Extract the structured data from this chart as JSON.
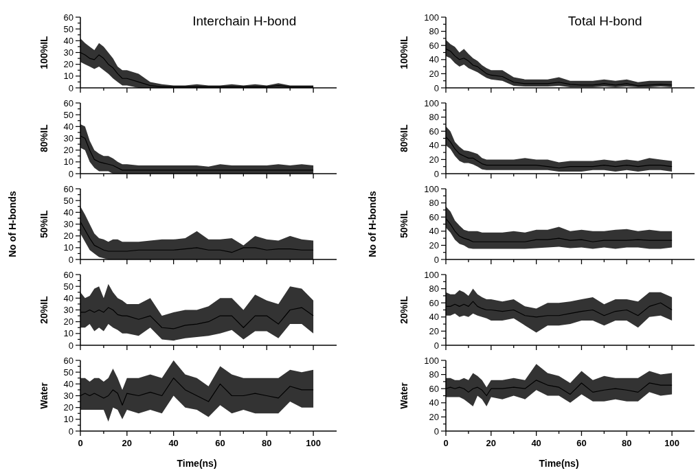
{
  "chart_data": [
    {
      "type": "line",
      "title": "Interchain H-bond",
      "ylabel": "100%IL",
      "tick_labels": "y",
      "x": [
        0,
        2,
        4,
        6,
        8,
        10,
        12,
        14,
        16,
        18,
        20,
        25,
        30,
        35,
        40,
        45,
        50,
        55,
        60,
        65,
        70,
        75,
        80,
        85,
        90,
        95,
        100
      ],
      "xlim": [
        0,
        110
      ],
      "xticks": [
        0,
        {
          "value": 10,
          "label": null
        },
        20,
        {
          "value": 30,
          "label": null
        },
        40,
        {
          "value": 50,
          "label": null
        },
        60,
        {
          "value": 70,
          "label": null
        },
        80,
        {
          "value": 90,
          "label": null
        },
        100
      ],
      "ylim": [
        0,
        60
      ],
      "yticks": [
        0,
        {
          "value": 5,
          "label": null
        },
        10,
        {
          "value": 15,
          "label": null
        },
        20,
        {
          "value": 25,
          "label": null
        },
        30,
        {
          "value": 35,
          "label": null
        },
        40,
        {
          "value": 45,
          "label": null
        },
        50,
        {
          "value": 55,
          "label": null
        },
        60
      ],
      "series": [
        {
          "color": "#000000",
          "values": [
            30,
            28,
            25,
            24,
            28,
            25,
            20,
            17,
            12,
            8,
            8,
            5,
            2,
            1,
            1,
            1,
            1,
            1,
            1,
            1,
            1,
            1,
            1,
            2,
            1,
            1,
            1
          ],
          "lower": [
            22,
            20,
            18,
            16,
            18,
            15,
            12,
            8,
            5,
            2,
            2,
            0,
            0,
            0,
            0,
            0,
            0,
            0,
            0,
            0,
            0,
            0,
            0,
            0,
            0,
            0,
            0
          ],
          "upper": [
            42,
            38,
            35,
            32,
            38,
            35,
            30,
            25,
            18,
            15,
            15,
            12,
            5,
            3,
            2,
            2,
            3,
            2,
            2,
            3,
            2,
            3,
            2,
            4,
            2,
            2,
            2
          ]
        }
      ]
    },
    {
      "type": "line",
      "ylabel": "80%IL",
      "tick_labels": "y",
      "x": [
        0,
        2,
        4,
        6,
        8,
        10,
        12,
        14,
        16,
        18,
        20,
        25,
        30,
        35,
        40,
        45,
        50,
        55,
        60,
        65,
        70,
        75,
        80,
        85,
        90,
        95,
        100
      ],
      "xlim": [
        0,
        110
      ],
      "xticks": [
        0,
        {
          "value": 10,
          "label": null
        },
        20,
        {
          "value": 30,
          "label": null
        },
        40,
        {
          "value": 50,
          "label": null
        },
        60,
        {
          "value": 70,
          "label": null
        },
        80,
        {
          "value": 90,
          "label": null
        },
        100
      ],
      "ylim": [
        0,
        60
      ],
      "yticks": [
        0,
        {
          "value": 5,
          "label": null
        },
        10,
        {
          "value": 15,
          "label": null
        },
        20,
        {
          "value": 25,
          "label": null
        },
        30,
        {
          "value": 35,
          "label": null
        },
        40,
        {
          "value": 45,
          "label": null
        },
        50,
        {
          "value": 55,
          "label": null
        },
        60
      ],
      "series": [
        {
          "color": "#000000",
          "values": [
            32,
            30,
            20,
            12,
            10,
            9,
            8,
            7,
            5,
            3,
            3,
            3,
            3,
            3,
            3,
            3,
            3,
            3,
            3,
            3,
            3,
            3,
            3,
            3,
            3,
            3,
            3
          ],
          "lower": [
            22,
            20,
            10,
            5,
            2,
            2,
            2,
            0,
            0,
            0,
            0,
            0,
            0,
            0,
            0,
            0,
            0,
            0,
            0,
            0,
            0,
            0,
            0,
            0,
            0,
            0,
            0
          ],
          "upper": [
            42,
            40,
            28,
            20,
            17,
            15,
            15,
            13,
            10,
            8,
            8,
            7,
            7,
            7,
            7,
            7,
            7,
            6,
            8,
            7,
            7,
            7,
            7,
            8,
            7,
            8,
            7
          ]
        }
      ]
    },
    {
      "type": "line",
      "ylabel": "50%IL",
      "annotations": [
        "No of H-bonds"
      ],
      "tick_labels": "y",
      "x": [
        0,
        2,
        4,
        6,
        8,
        10,
        12,
        14,
        16,
        18,
        20,
        25,
        30,
        35,
        40,
        45,
        50,
        55,
        60,
        65,
        70,
        75,
        80,
        85,
        90,
        95,
        100
      ],
      "xlim": [
        0,
        110
      ],
      "xticks": [
        0,
        {
          "value": 10,
          "label": null
        },
        20,
        {
          "value": 30,
          "label": null
        },
        40,
        {
          "value": 50,
          "label": null
        },
        60,
        {
          "value": 70,
          "label": null
        },
        80,
        {
          "value": 90,
          "label": null
        },
        100
      ],
      "ylim": [
        0,
        60
      ],
      "yticks": [
        0,
        {
          "value": 5,
          "label": null
        },
        10,
        {
          "value": 15,
          "label": null
        },
        20,
        {
          "value": 25,
          "label": null
        },
        30,
        {
          "value": 35,
          "label": null
        },
        40,
        {
          "value": 45,
          "label": null
        },
        50,
        {
          "value": 55,
          "label": null
        },
        60
      ],
      "series": [
        {
          "color": "#000000",
          "values": [
            32,
            25,
            18,
            12,
            10,
            8,
            7,
            7,
            7,
            7,
            7,
            8,
            8,
            8,
            8,
            9,
            10,
            8,
            8,
            6,
            10,
            10,
            8,
            9,
            9,
            8,
            8
          ],
          "lower": [
            22,
            15,
            8,
            5,
            2,
            1,
            0,
            0,
            0,
            0,
            0,
            0,
            0,
            0,
            0,
            0,
            0,
            0,
            0,
            0,
            0,
            0,
            0,
            0,
            0,
            0,
            0
          ],
          "upper": [
            45,
            38,
            30,
            22,
            18,
            17,
            15,
            17,
            17,
            15,
            15,
            15,
            16,
            17,
            17,
            18,
            24,
            17,
            17,
            18,
            12,
            20,
            17,
            16,
            20,
            17,
            16
          ]
        }
      ]
    },
    {
      "type": "line",
      "ylabel": "20%IL",
      "tick_labels": "y",
      "x": [
        0,
        2,
        4,
        6,
        8,
        10,
        12,
        14,
        16,
        18,
        20,
        25,
        30,
        35,
        40,
        45,
        50,
        55,
        60,
        65,
        70,
        75,
        80,
        85,
        90,
        95,
        100
      ],
      "xlim": [
        0,
        110
      ],
      "xticks": [
        0,
        {
          "value": 10,
          "label": null
        },
        20,
        {
          "value": 30,
          "label": null
        },
        40,
        {
          "value": 50,
          "label": null
        },
        60,
        {
          "value": 70,
          "label": null
        },
        80,
        {
          "value": 90,
          "label": null
        },
        100
      ],
      "ylim": [
        0,
        60
      ],
      "yticks": [
        0,
        {
          "value": 5,
          "label": null
        },
        10,
        {
          "value": 15,
          "label": null
        },
        20,
        {
          "value": 25,
          "label": null
        },
        30,
        {
          "value": 35,
          "label": null
        },
        40,
        {
          "value": 45,
          "label": null
        },
        50,
        {
          "value": 55,
          "label": null
        },
        60
      ],
      "series": [
        {
          "color": "#000000",
          "values": [
            28,
            28,
            30,
            28,
            30,
            28,
            32,
            30,
            26,
            25,
            25,
            22,
            25,
            15,
            14,
            17,
            18,
            20,
            25,
            25,
            15,
            25,
            25,
            18,
            30,
            32,
            25
          ],
          "lower": [
            15,
            15,
            18,
            12,
            15,
            12,
            18,
            15,
            13,
            10,
            10,
            8,
            15,
            5,
            4,
            6,
            7,
            8,
            10,
            13,
            5,
            12,
            12,
            6,
            18,
            18,
            10
          ],
          "upper": [
            45,
            40,
            42,
            48,
            50,
            40,
            52,
            45,
            40,
            38,
            35,
            35,
            40,
            25,
            28,
            30,
            30,
            33,
            40,
            40,
            30,
            43,
            38,
            35,
            50,
            48,
            38
          ]
        }
      ]
    },
    {
      "type": "line",
      "ylabel": "Water",
      "xlabel": "Time(ns)",
      "x": [
        0,
        2,
        4,
        6,
        8,
        10,
        12,
        14,
        16,
        18,
        20,
        25,
        30,
        35,
        40,
        45,
        50,
        55,
        60,
        65,
        70,
        75,
        80,
        85,
        90,
        95,
        100
      ],
      "xlim": [
        0,
        110
      ],
      "xticks": [
        0,
        {
          "value": 10,
          "label": null
        },
        20,
        {
          "value": 30,
          "label": null
        },
        40,
        {
          "value": 50,
          "label": null
        },
        60,
        {
          "value": 70,
          "label": null
        },
        80,
        {
          "value": 90,
          "label": null
        },
        100
      ],
      "ylim": [
        0,
        60
      ],
      "yticks": [
        0,
        {
          "value": 5,
          "label": null
        },
        10,
        {
          "value": 15,
          "label": null
        },
        20,
        {
          "value": 25,
          "label": null
        },
        30,
        {
          "value": 35,
          "label": null
        },
        40,
        {
          "value": 45,
          "label": null
        },
        50,
        {
          "value": 55,
          "label": null
        },
        60
      ],
      "series": [
        {
          "color": "#000000",
          "values": [
            30,
            32,
            30,
            32,
            30,
            28,
            30,
            35,
            32,
            22,
            32,
            30,
            33,
            30,
            45,
            35,
            30,
            25,
            40,
            30,
            30,
            32,
            30,
            28,
            38,
            35,
            35
          ],
          "lower": [
            18,
            18,
            18,
            18,
            18,
            18,
            8,
            20,
            18,
            10,
            18,
            15,
            18,
            15,
            30,
            20,
            18,
            12,
            22,
            15,
            18,
            15,
            15,
            15,
            25,
            20,
            20
          ],
          "upper": [
            45,
            45,
            42,
            45,
            45,
            42,
            45,
            53,
            45,
            35,
            45,
            45,
            48,
            45,
            60,
            48,
            45,
            38,
            55,
            48,
            45,
            45,
            45,
            45,
            52,
            50,
            52
          ]
        }
      ]
    },
    {
      "type": "line",
      "title": "Total H-bond",
      "ylabel": "100%IL",
      "tick_labels": "y",
      "x": [
        0,
        2,
        4,
        6,
        8,
        10,
        12,
        14,
        16,
        18,
        20,
        25,
        30,
        35,
        40,
        45,
        50,
        55,
        60,
        65,
        70,
        75,
        80,
        85,
        90,
        95,
        100
      ],
      "xlim": [
        0,
        110
      ],
      "xticks": [
        0,
        {
          "value": 10,
          "label": null
        },
        20,
        {
          "value": 30,
          "label": null
        },
        40,
        {
          "value": 50,
          "label": null
        },
        60,
        {
          "value": 70,
          "label": null
        },
        80,
        {
          "value": 90,
          "label": null
        },
        100
      ],
      "ylim": [
        0,
        100
      ],
      "yticks": [
        0,
        {
          "value": 10,
          "label": null
        },
        20,
        {
          "value": 30,
          "label": null
        },
        40,
        {
          "value": 50,
          "label": null
        },
        60,
        {
          "value": 70,
          "label": null
        },
        80,
        {
          "value": 90,
          "label": null
        },
        100
      ],
      "series": [
        {
          "color": "#000000",
          "values": [
            55,
            52,
            45,
            40,
            42,
            38,
            32,
            30,
            25,
            20,
            18,
            16,
            8,
            6,
            6,
            6,
            8,
            5,
            4,
            4,
            6,
            4,
            6,
            3,
            4,
            5,
            4
          ],
          "lower": [
            45,
            42,
            35,
            30,
            33,
            28,
            25,
            22,
            18,
            14,
            12,
            10,
            3,
            2,
            2,
            2,
            3,
            1,
            1,
            1,
            2,
            1,
            2,
            1,
            1,
            2,
            1
          ],
          "upper": [
            68,
            62,
            58,
            50,
            55,
            48,
            42,
            38,
            32,
            28,
            25,
            25,
            15,
            12,
            12,
            12,
            15,
            10,
            10,
            10,
            12,
            10,
            12,
            8,
            10,
            10,
            10
          ]
        }
      ]
    },
    {
      "type": "line",
      "ylabel": "80%IL",
      "tick_labels": "y",
      "x": [
        0,
        2,
        4,
        6,
        8,
        10,
        12,
        14,
        16,
        18,
        20,
        25,
        30,
        35,
        40,
        45,
        50,
        55,
        60,
        65,
        70,
        75,
        80,
        85,
        90,
        95,
        100
      ],
      "xlim": [
        0,
        110
      ],
      "xticks": [
        0,
        {
          "value": 10,
          "label": null
        },
        20,
        {
          "value": 30,
          "label": null
        },
        40,
        {
          "value": 50,
          "label": null
        },
        60,
        {
          "value": 70,
          "label": null
        },
        80,
        {
          "value": 90,
          "label": null
        },
        100
      ],
      "ylim": [
        0,
        100
      ],
      "yticks": [
        0,
        {
          "value": 10,
          "label": null
        },
        20,
        {
          "value": 30,
          "label": null
        },
        40,
        {
          "value": 50,
          "label": null
        },
        60,
        {
          "value": 70,
          "label": null
        },
        80,
        {
          "value": 90,
          "label": null
        },
        100
      ],
      "series": [
        {
          "color": "#000000",
          "values": [
            52,
            45,
            35,
            28,
            25,
            22,
            22,
            18,
            14,
            12,
            12,
            12,
            12,
            12,
            12,
            10,
            8,
            10,
            10,
            10,
            12,
            10,
            12,
            10,
            12,
            12,
            10
          ],
          "lower": [
            40,
            35,
            25,
            18,
            15,
            15,
            13,
            10,
            6,
            5,
            5,
            5,
            5,
            5,
            5,
            5,
            3,
            3,
            3,
            5,
            5,
            3,
            5,
            3,
            5,
            5,
            3
          ],
          "upper": [
            67,
            60,
            45,
            38,
            33,
            32,
            30,
            28,
            22,
            20,
            20,
            20,
            20,
            22,
            20,
            20,
            16,
            18,
            18,
            18,
            20,
            18,
            20,
            18,
            22,
            20,
            18
          ]
        }
      ]
    },
    {
      "type": "line",
      "ylabel": "50%IL",
      "annotations": [
        "No of H-bonds"
      ],
      "tick_labels": "y",
      "x": [
        0,
        2,
        4,
        6,
        8,
        10,
        12,
        14,
        16,
        18,
        20,
        25,
        30,
        35,
        40,
        45,
        50,
        55,
        60,
        65,
        70,
        75,
        80,
        85,
        90,
        95,
        100
      ],
      "xlim": [
        0,
        110
      ],
      "xticks": [
        0,
        {
          "value": 10,
          "label": null
        },
        20,
        {
          "value": 30,
          "label": null
        },
        40,
        {
          "value": 50,
          "label": null
        },
        60,
        {
          "value": 70,
          "label": null
        },
        80,
        {
          "value": 90,
          "label": null
        },
        100
      ],
      "ylim": [
        0,
        100
      ],
      "yticks": [
        0,
        {
          "value": 10,
          "label": null
        },
        20,
        {
          "value": 30,
          "label": null
        },
        40,
        {
          "value": 50,
          "label": null
        },
        60,
        {
          "value": 70,
          "label": null
        },
        80,
        {
          "value": 90,
          "label": null
        },
        100
      ],
      "series": [
        {
          "color": "#000000",
          "values": [
            58,
            50,
            40,
            33,
            30,
            28,
            25,
            25,
            25,
            25,
            25,
            25,
            25,
            25,
            28,
            28,
            30,
            27,
            28,
            25,
            27,
            27,
            27,
            28,
            27,
            27,
            27
          ],
          "lower": [
            45,
            38,
            28,
            22,
            20,
            16,
            15,
            15,
            15,
            15,
            15,
            15,
            15,
            15,
            16,
            17,
            18,
            16,
            17,
            15,
            17,
            15,
            17,
            17,
            15,
            15,
            17
          ],
          "upper": [
            75,
            68,
            55,
            48,
            42,
            40,
            40,
            40,
            38,
            38,
            38,
            38,
            40,
            38,
            42,
            42,
            46,
            40,
            42,
            40,
            40,
            42,
            43,
            40,
            42,
            40,
            40
          ]
        }
      ]
    },
    {
      "type": "line",
      "ylabel": "20%IL",
      "tick_labels": "y",
      "x": [
        0,
        2,
        4,
        6,
        8,
        10,
        12,
        14,
        16,
        18,
        20,
        25,
        30,
        35,
        40,
        45,
        50,
        55,
        60,
        65,
        70,
        75,
        80,
        85,
        90,
        95,
        100
      ],
      "xlim": [
        0,
        110
      ],
      "xticks": [
        0,
        {
          "value": 10,
          "label": null
        },
        20,
        {
          "value": 30,
          "label": null
        },
        40,
        {
          "value": 50,
          "label": null
        },
        60,
        {
          "value": 70,
          "label": null
        },
        80,
        {
          "value": 90,
          "label": null
        },
        100
      ],
      "ylim": [
        0,
        100
      ],
      "yticks": [
        0,
        {
          "value": 10,
          "label": null
        },
        20,
        {
          "value": 30,
          "label": null
        },
        40,
        {
          "value": 50,
          "label": null
        },
        60,
        {
          "value": 70,
          "label": null
        },
        80,
        {
          "value": 90,
          "label": null
        },
        100
      ],
      "series": [
        {
          "color": "#000000",
          "values": [
            55,
            55,
            58,
            55,
            58,
            55,
            62,
            55,
            52,
            50,
            50,
            48,
            50,
            42,
            40,
            42,
            42,
            45,
            48,
            50,
            42,
            48,
            50,
            42,
            55,
            60,
            50
          ],
          "lower": [
            42,
            42,
            45,
            40,
            42,
            40,
            45,
            42,
            40,
            38,
            35,
            35,
            38,
            28,
            18,
            28,
            28,
            30,
            35,
            35,
            28,
            35,
            35,
            25,
            40,
            42,
            35
          ],
          "upper": [
            75,
            72,
            72,
            78,
            75,
            70,
            80,
            72,
            68,
            65,
            65,
            62,
            65,
            55,
            52,
            60,
            60,
            62,
            65,
            68,
            58,
            65,
            65,
            62,
            75,
            75,
            68
          ]
        }
      ]
    },
    {
      "type": "line",
      "ylabel": "Water",
      "xlabel": "Time(ns)",
      "x": [
        0,
        2,
        4,
        6,
        8,
        10,
        12,
        14,
        16,
        18,
        20,
        25,
        30,
        35,
        40,
        45,
        50,
        55,
        60,
        65,
        70,
        75,
        80,
        85,
        90,
        95,
        100
      ],
      "xlim": [
        0,
        110
      ],
      "xticks": [
        0,
        {
          "value": 10,
          "label": null
        },
        20,
        {
          "value": 30,
          "label": null
        },
        40,
        {
          "value": 50,
          "label": null
        },
        60,
        {
          "value": 70,
          "label": null
        },
        80,
        {
          "value": 90,
          "label": null
        },
        100
      ],
      "ylim": [
        0,
        100
      ],
      "yticks": [
        0,
        {
          "value": 10,
          "label": null
        },
        20,
        {
          "value": 30,
          "label": null
        },
        40,
        {
          "value": 50,
          "label": null
        },
        60,
        {
          "value": 70,
          "label": null
        },
        80,
        {
          "value": 90,
          "label": null
        },
        100
      ],
      "series": [
        {
          "color": "#000000",
          "values": [
            60,
            62,
            60,
            62,
            60,
            55,
            60,
            62,
            58,
            50,
            60,
            60,
            62,
            60,
            72,
            65,
            62,
            52,
            68,
            55,
            58,
            60,
            58,
            55,
            68,
            65,
            65
          ],
          "lower": [
            48,
            48,
            48,
            48,
            45,
            40,
            35,
            50,
            45,
            35,
            48,
            45,
            50,
            45,
            58,
            50,
            50,
            40,
            52,
            42,
            42,
            45,
            42,
            42,
            55,
            50,
            52
          ],
          "upper": [
            75,
            75,
            72,
            72,
            75,
            72,
            82,
            78,
            72,
            62,
            72,
            72,
            75,
            72,
            95,
            82,
            78,
            68,
            85,
            72,
            78,
            75,
            75,
            75,
            85,
            80,
            82
          ]
        }
      ]
    }
  ]
}
